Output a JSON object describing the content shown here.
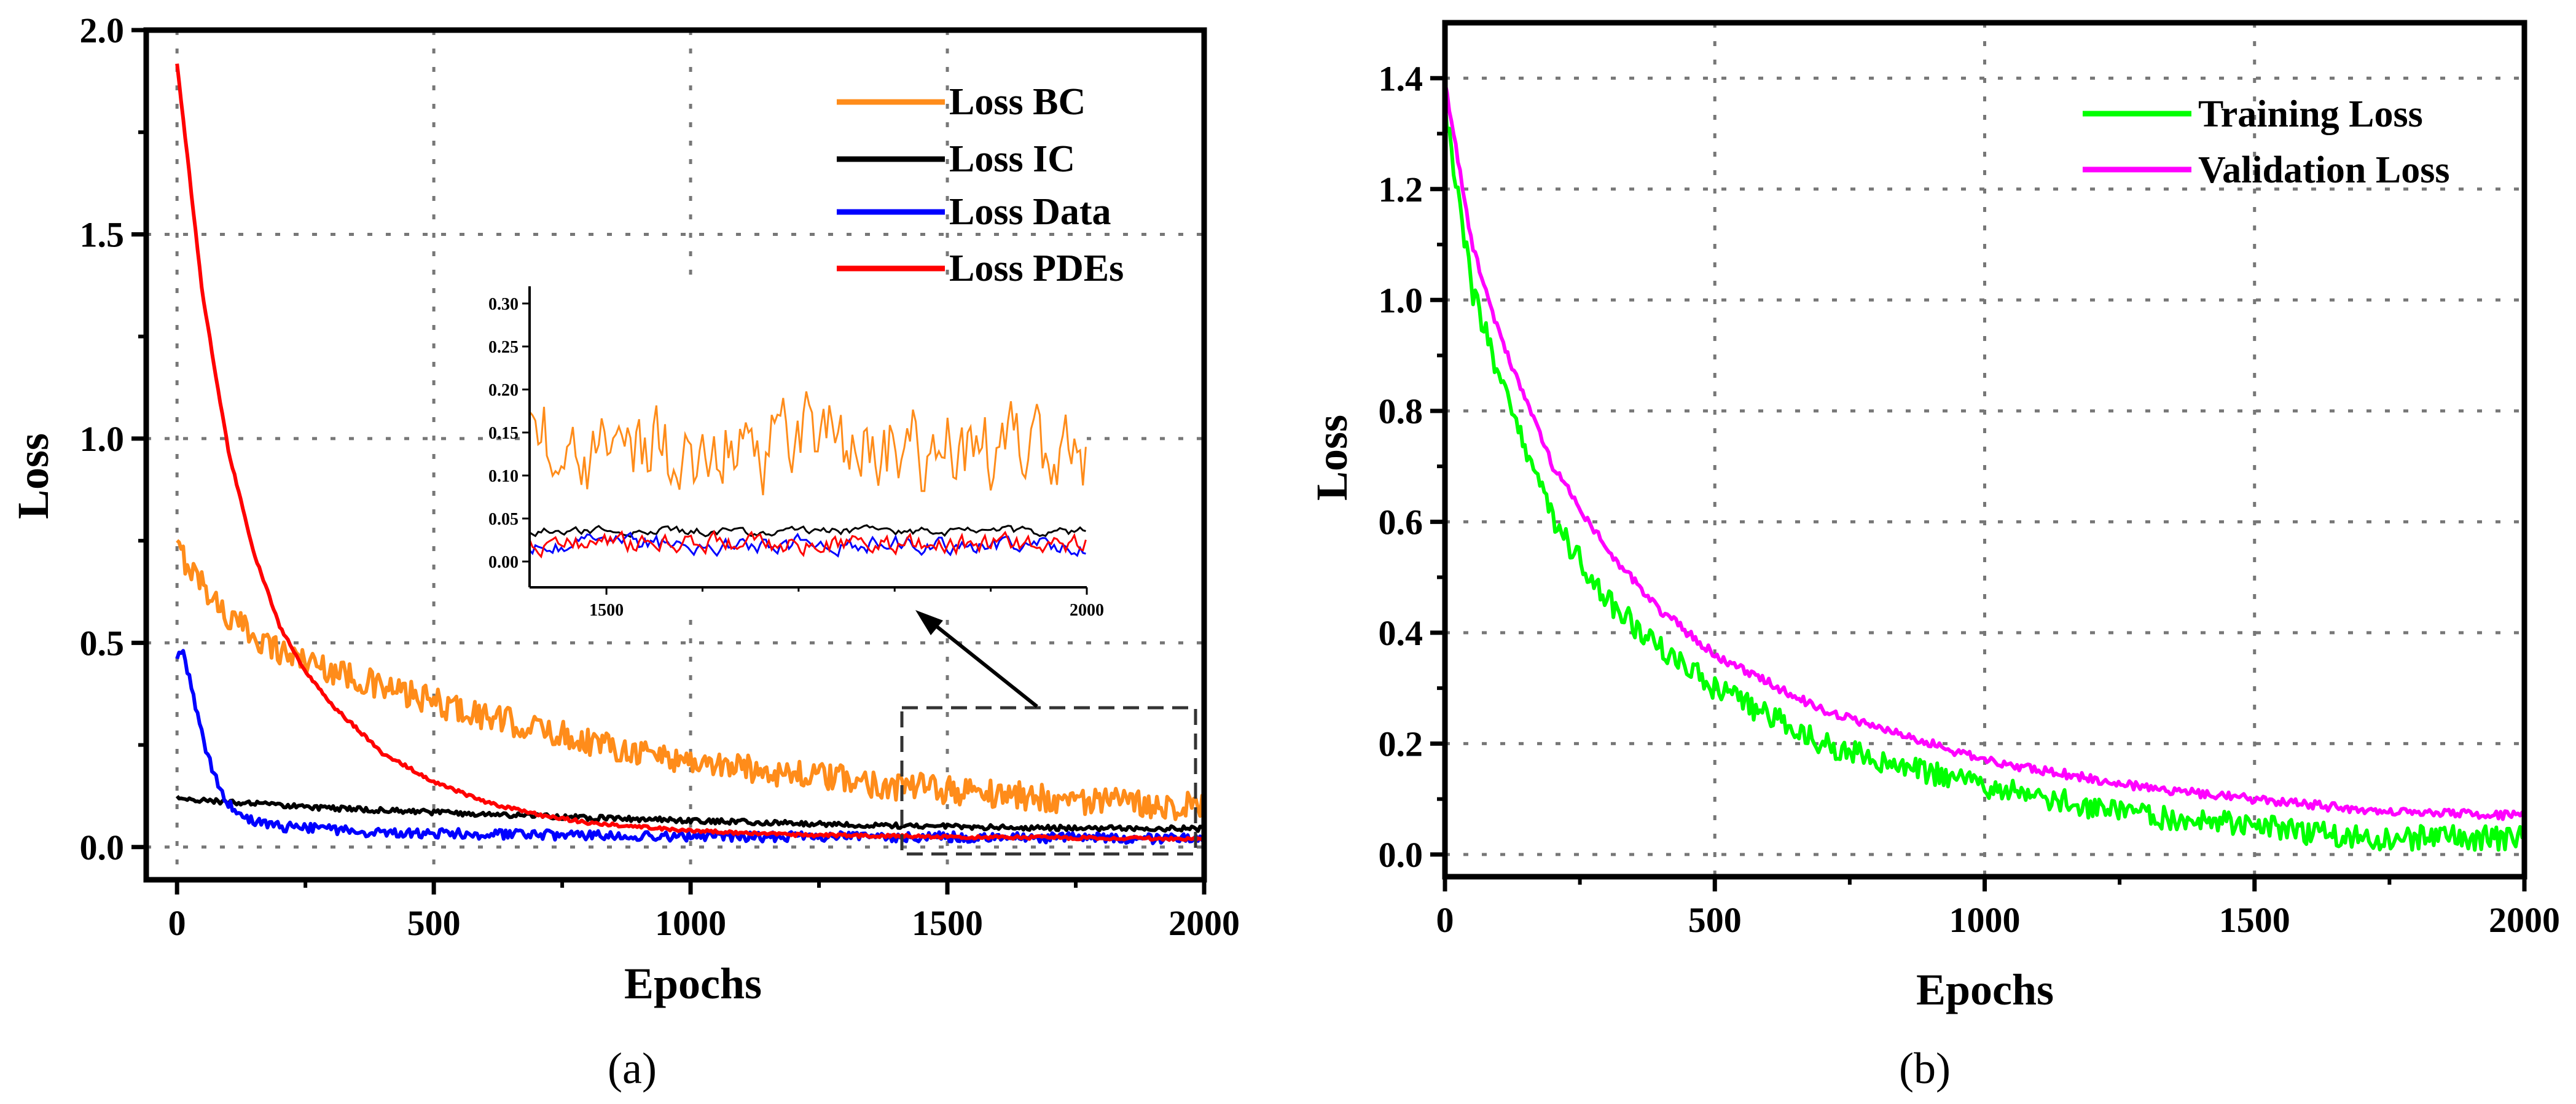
{
  "chart_data": [
    {
      "id": "a",
      "type": "line",
      "panel_label": "(a)",
      "xlabel": "Epochs",
      "ylabel": "Loss",
      "xlim": [
        -60,
        2000
      ],
      "ylim": [
        -0.08,
        2.0
      ],
      "xticks": [
        0,
        500,
        1000,
        1500,
        2000
      ],
      "xtick_labels": [
        "0",
        "500",
        "1000",
        "1500",
        "2000"
      ],
      "yticks": [
        0.0,
        0.5,
        1.0,
        1.5,
        2.0
      ],
      "ytick_labels": [
        "0.0",
        "0.5",
        "1.0",
        "1.5",
        "2.0"
      ],
      "grid": true,
      "legend_position": "top-right",
      "series": [
        {
          "name": "Loss BC",
          "color": "#ff8c1a",
          "x": [
            0,
            100,
            200,
            400,
            600,
            800,
            1000,
            1200,
            1400,
            1600,
            1800,
            2000
          ],
          "values": [
            0.73,
            0.56,
            0.48,
            0.39,
            0.32,
            0.26,
            0.21,
            0.18,
            0.15,
            0.13,
            0.11,
            0.1
          ],
          "noise": 0.035
        },
        {
          "name": "Loss IC",
          "color": "#000000",
          "x": [
            0,
            100,
            300,
            500,
            800,
            1000,
            1300,
            1600,
            2000
          ],
          "values": [
            0.12,
            0.11,
            0.095,
            0.085,
            0.072,
            0.065,
            0.055,
            0.048,
            0.045
          ],
          "noise": 0.006
        },
        {
          "name": "Loss Data",
          "color": "#0000ff",
          "x": [
            0,
            10,
            30,
            60,
            90,
            130,
            200,
            400,
            700,
            1000,
            1500,
            2000
          ],
          "values": [
            0.45,
            0.49,
            0.38,
            0.22,
            0.12,
            0.07,
            0.05,
            0.035,
            0.03,
            0.025,
            0.025,
            0.02
          ],
          "noise": 0.012
        },
        {
          "name": "Loss PDEs",
          "color": "#ff0000",
          "x": [
            0,
            50,
            100,
            150,
            200,
            250,
            300,
            400,
            500,
            600,
            700,
            800,
            1000,
            1200,
            1500,
            2000
          ],
          "values": [
            1.92,
            1.35,
            0.97,
            0.72,
            0.54,
            0.43,
            0.35,
            0.23,
            0.16,
            0.11,
            0.08,
            0.06,
            0.04,
            0.03,
            0.025,
            0.02
          ],
          "noise": 0.004
        }
      ],
      "inset": {
        "xlim": [
          1420,
          2000
        ],
        "ylim": [
          -0.03,
          0.32
        ],
        "xticks": [
          1500,
          2000
        ],
        "xtick_labels": [
          "1500",
          "2000"
        ],
        "yticks": [
          0.0,
          0.05,
          0.1,
          0.15,
          0.2,
          0.25,
          0.3
        ],
        "ytick_labels": [
          "0.00",
          "0.05",
          "0.10",
          "0.15",
          "0.20",
          "0.25",
          "0.30"
        ],
        "series": [
          {
            "name": "Loss BC",
            "color": "#ff8c1a",
            "base": 0.13,
            "noise": 0.045
          },
          {
            "name": "Loss IC",
            "color": "#000000",
            "base": 0.035,
            "noise": 0.004
          },
          {
            "name": "Loss Data",
            "color": "#0000ff",
            "base": 0.02,
            "noise": 0.008
          },
          {
            "name": "Loss PDEs",
            "color": "#ff0000",
            "base": 0.02,
            "noise": 0.009
          }
        ]
      }
    },
    {
      "id": "b",
      "type": "line",
      "panel_label": "(b)",
      "xlabel": "Epochs",
      "ylabel": "Loss",
      "xlim": [
        0,
        2000
      ],
      "ylim": [
        -0.04,
        1.5
      ],
      "xticks": [
        0,
        500,
        1000,
        1500,
        2000
      ],
      "xtick_labels": [
        "0",
        "500",
        "1000",
        "1500",
        "2000"
      ],
      "yticks": [
        0.0,
        0.2,
        0.4,
        0.6,
        0.8,
        1.0,
        1.2,
        1.4
      ],
      "ytick_labels": [
        "0.0",
        "0.2",
        "0.4",
        "0.6",
        "0.8",
        "1.0",
        "1.2",
        "1.4"
      ],
      "grid": true,
      "legend_position": "top-right",
      "series": [
        {
          "name": "Training Loss",
          "color": "#00ff00",
          "x": [
            0,
            50,
            100,
            200,
            300,
            400,
            500,
            700,
            1000,
            1300,
            1500,
            1700,
            2000
          ],
          "values": [
            1.35,
            1.02,
            0.86,
            0.6,
            0.46,
            0.37,
            0.3,
            0.2,
            0.12,
            0.07,
            0.05,
            0.03,
            0.03
          ],
          "noise": 0.022
        },
        {
          "name": "Validation Loss",
          "color": "#ff00ff",
          "x": [
            0,
            50,
            100,
            200,
            300,
            400,
            500,
            700,
            1000,
            1300,
            1500,
            1700,
            2000
          ],
          "values": [
            1.39,
            1.1,
            0.94,
            0.7,
            0.55,
            0.44,
            0.36,
            0.26,
            0.17,
            0.12,
            0.1,
            0.08,
            0.07
          ],
          "noise": 0.008
        }
      ]
    }
  ]
}
